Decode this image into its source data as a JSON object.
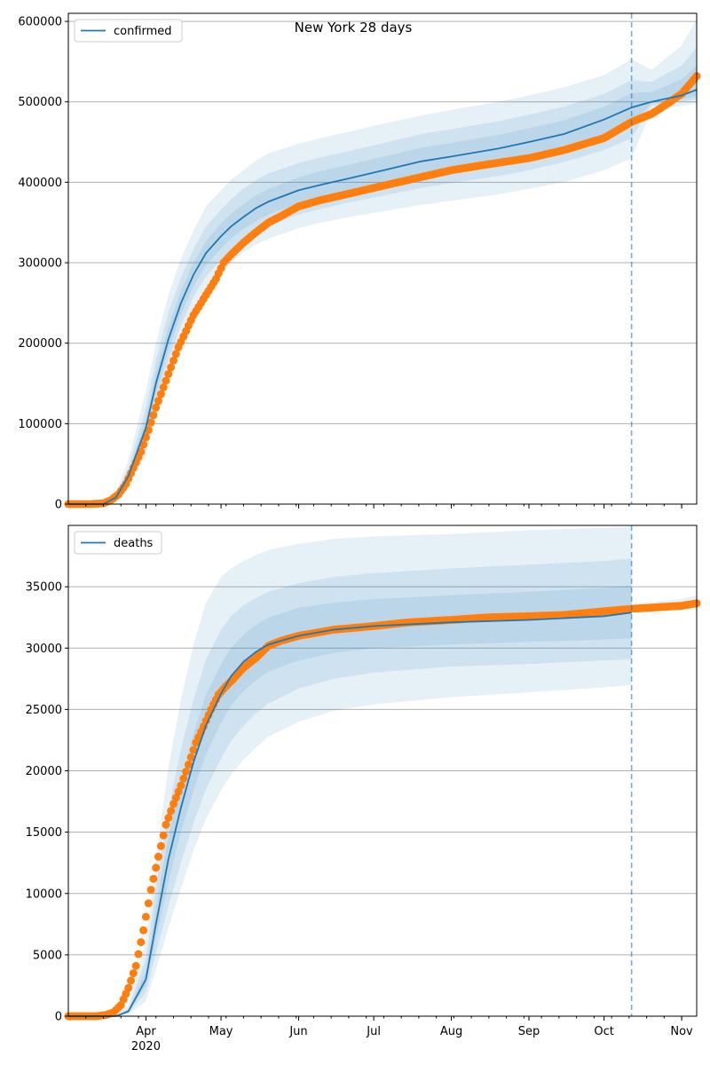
{
  "colors": {
    "model": "#1f77b4",
    "observed": "#ff7f0e",
    "band": "#1f77b4",
    "grid": "#b0b0b0",
    "axis": "#000000"
  },
  "x_axis": {
    "range": [
      "2020-03-01",
      "2020-11-07"
    ],
    "month_ticks": [
      {
        "date": "2020-04-01",
        "label": "Apr",
        "year_label": "2020"
      },
      {
        "date": "2020-05-01",
        "label": "May"
      },
      {
        "date": "2020-06-01",
        "label": "Jun"
      },
      {
        "date": "2020-07-01",
        "label": "Jul"
      },
      {
        "date": "2020-08-01",
        "label": "Aug"
      },
      {
        "date": "2020-09-01",
        "label": "Sep"
      },
      {
        "date": "2020-10-01",
        "label": "Oct"
      },
      {
        "date": "2020-11-01",
        "label": "Nov"
      }
    ],
    "minor_tick_step_days": 7,
    "forecast_line": "2020-10-12"
  },
  "chart_data": [
    {
      "type": "line",
      "title": "New York 28 days",
      "legend": {
        "label": "confirmed",
        "placement": "top-left"
      },
      "grid": true,
      "ylim": [
        0,
        610000
      ],
      "yticks": [
        0,
        100000,
        200000,
        300000,
        400000,
        500000,
        600000
      ],
      "ytick_labels": [
        "0",
        "100000",
        "200000",
        "300000",
        "400000",
        "500000",
        "600000"
      ],
      "model_curve": {
        "x": [
          "2020-03-01",
          "2020-03-15",
          "2020-03-20",
          "2020-03-25",
          "2020-04-01",
          "2020-04-05",
          "2020-04-10",
          "2020-04-15",
          "2020-04-20",
          "2020-04-25",
          "2020-05-01",
          "2020-05-05",
          "2020-05-10",
          "2020-05-15",
          "2020-05-20",
          "2020-06-01",
          "2020-06-10",
          "2020-06-20",
          "2020-07-01",
          "2020-07-20",
          "2020-08-01",
          "2020-08-20",
          "2020-09-01",
          "2020-09-15",
          "2020-10-01",
          "2020-10-12",
          "2020-10-20",
          "2020-11-01",
          "2020-11-07"
        ],
        "y": [
          0,
          0,
          8000,
          35000,
          95000,
          150000,
          205000,
          250000,
          285000,
          312000,
          333000,
          345000,
          357000,
          368000,
          376000,
          390000,
          397000,
          404000,
          412000,
          426000,
          432000,
          442000,
          450000,
          460000,
          478000,
          493000,
          500000,
          508000,
          515000
        ]
      },
      "bands": [
        {
          "label": "outer",
          "x": [
            "2020-03-01",
            "2020-03-15",
            "2020-03-20",
            "2020-03-25",
            "2020-04-01",
            "2020-04-05",
            "2020-04-10",
            "2020-04-15",
            "2020-04-20",
            "2020-04-25",
            "2020-05-01",
            "2020-05-05",
            "2020-05-10",
            "2020-05-15",
            "2020-05-20",
            "2020-06-01",
            "2020-06-10",
            "2020-06-20",
            "2020-07-01",
            "2020-07-20",
            "2020-08-01",
            "2020-08-20",
            "2020-09-01",
            "2020-09-15",
            "2020-10-01",
            "2020-10-12",
            "2020-10-20",
            "2020-11-01",
            "2020-11-07"
          ],
          "lower": [
            0,
            0,
            4000,
            22000,
            62000,
            110000,
            160000,
            205000,
            240000,
            265000,
            285000,
            300000,
            313000,
            323000,
            330000,
            343000,
            350000,
            356000,
            362000,
            372000,
            377000,
            385000,
            392000,
            400000,
            415000,
            430000,
            490000,
            495000,
            498000
          ],
          "upper": [
            0,
            0,
            14000,
            55000,
            140000,
            200000,
            260000,
            305000,
            340000,
            370000,
            390000,
            403000,
            415000,
            427000,
            436000,
            448000,
            455000,
            462000,
            470000,
            483000,
            490000,
            500000,
            508000,
            518000,
            533000,
            553000,
            540000,
            570000,
            603000
          ]
        },
        {
          "label": "middle",
          "x": [
            "2020-03-01",
            "2020-03-15",
            "2020-03-20",
            "2020-03-25",
            "2020-04-01",
            "2020-04-05",
            "2020-04-10",
            "2020-04-15",
            "2020-04-20",
            "2020-04-25",
            "2020-05-01",
            "2020-05-05",
            "2020-05-10",
            "2020-05-15",
            "2020-05-20",
            "2020-06-01",
            "2020-06-10",
            "2020-06-20",
            "2020-07-01",
            "2020-07-20",
            "2020-08-01",
            "2020-08-20",
            "2020-09-01",
            "2020-09-15",
            "2020-10-01",
            "2020-10-12",
            "2020-10-20",
            "2020-11-01",
            "2020-11-07"
          ],
          "lower": [
            0,
            0,
            6000,
            28000,
            75000,
            125000,
            178000,
            222000,
            258000,
            283000,
            303000,
            316000,
            328000,
            338000,
            346000,
            360000,
            367000,
            374000,
            381000,
            393000,
            399000,
            408000,
            415000,
            425000,
            440000,
            455000,
            495000,
            500000,
            503000
          ],
          "upper": [
            0,
            0,
            11000,
            45000,
            120000,
            180000,
            238000,
            282000,
            317000,
            345000,
            366000,
            379000,
            392000,
            403000,
            411000,
            424000,
            431000,
            438000,
            446000,
            460000,
            466000,
            476000,
            484000,
            494000,
            510000,
            527000,
            525000,
            545000,
            568000
          ]
        },
        {
          "label": "inner",
          "x": [
            "2020-03-01",
            "2020-03-15",
            "2020-03-20",
            "2020-03-25",
            "2020-04-01",
            "2020-04-05",
            "2020-04-10",
            "2020-04-15",
            "2020-04-20",
            "2020-04-25",
            "2020-05-01",
            "2020-05-05",
            "2020-05-10",
            "2020-05-15",
            "2020-05-20",
            "2020-06-01",
            "2020-06-10",
            "2020-06-20",
            "2020-07-01",
            "2020-07-20",
            "2020-08-01",
            "2020-08-20",
            "2020-09-01",
            "2020-09-15",
            "2020-10-01",
            "2020-10-12",
            "2020-10-20",
            "2020-11-01",
            "2020-11-07"
          ],
          "lower": [
            0,
            0,
            7000,
            31000,
            84000,
            137000,
            191000,
            236000,
            271000,
            297000,
            318000,
            330000,
            342000,
            352000,
            360000,
            374000,
            381000,
            388000,
            396000,
            409000,
            415000,
            424000,
            432000,
            442000,
            458000,
            473000,
            498000,
            503000,
            507000
          ],
          "upper": [
            0,
            0,
            9500,
            40000,
            107000,
            164000,
            220000,
            265000,
            300000,
            327000,
            349000,
            361000,
            373000,
            384000,
            392000,
            406000,
            414000,
            421000,
            429000,
            443000,
            449000,
            459000,
            467000,
            477000,
            494000,
            511000,
            512000,
            528000,
            545000
          ]
        }
      ],
      "observed": {
        "x": [
          "2020-03-01",
          "2020-03-10",
          "2020-03-15",
          "2020-03-18",
          "2020-03-21",
          "2020-03-24",
          "2020-03-27",
          "2020-03-30",
          "2020-04-02",
          "2020-04-05",
          "2020-04-08",
          "2020-04-11",
          "2020-04-14",
          "2020-04-17",
          "2020-04-20",
          "2020-04-23",
          "2020-04-26",
          "2020-04-29",
          "2020-05-02",
          "2020-05-05",
          "2020-05-10",
          "2020-05-15",
          "2020-05-20",
          "2020-05-25",
          "2020-06-01",
          "2020-06-10",
          "2020-06-20",
          "2020-07-01",
          "2020-07-15",
          "2020-08-01",
          "2020-08-15",
          "2020-09-01",
          "2020-09-15",
          "2020-10-01",
          "2020-10-12",
          "2020-10-20",
          "2020-10-25",
          "2020-11-01",
          "2020-11-07"
        ],
        "y": [
          0,
          0,
          1000,
          5000,
          12000,
          25000,
          45000,
          65000,
          92000,
          120000,
          145000,
          170000,
          195000,
          215000,
          235000,
          250000,
          265000,
          280000,
          300000,
          310000,
          325000,
          338000,
          350000,
          358000,
          370000,
          378000,
          385000,
          393000,
          403000,
          415000,
          422000,
          430000,
          440000,
          455000,
          475000,
          485000,
          495000,
          510000,
          532000
        ]
      }
    },
    {
      "type": "line",
      "title": "",
      "legend": {
        "label": "deaths",
        "placement": "top-left"
      },
      "grid": true,
      "ylim": [
        0,
        40000
      ],
      "yticks": [
        0,
        5000,
        10000,
        15000,
        20000,
        25000,
        30000,
        35000
      ],
      "ytick_labels": [
        "0",
        "5000",
        "10000",
        "15000",
        "20000",
        "25000",
        "30000",
        "35000"
      ],
      "model_curve": {
        "x": [
          "2020-03-01",
          "2020-03-20",
          "2020-03-25",
          "2020-04-01",
          "2020-04-05",
          "2020-04-10",
          "2020-04-15",
          "2020-04-20",
          "2020-04-25",
          "2020-05-01",
          "2020-05-05",
          "2020-05-10",
          "2020-05-15",
          "2020-05-20",
          "2020-06-01",
          "2020-06-15",
          "2020-07-01",
          "2020-08-01",
          "2020-09-01",
          "2020-10-01",
          "2020-10-12"
        ],
        "y": [
          0,
          0,
          400,
          3000,
          7500,
          12800,
          17000,
          20700,
          23700,
          26300,
          27700,
          28900,
          29700,
          30300,
          31000,
          31500,
          31800,
          32100,
          32300,
          32600,
          32900
        ]
      },
      "bands": [
        {
          "label": "outer",
          "x": [
            "2020-03-01",
            "2020-03-20",
            "2020-03-25",
            "2020-04-01",
            "2020-04-05",
            "2020-04-10",
            "2020-04-15",
            "2020-04-20",
            "2020-04-25",
            "2020-05-01",
            "2020-05-05",
            "2020-05-10",
            "2020-05-15",
            "2020-05-20",
            "2020-06-01",
            "2020-06-15",
            "2020-07-01",
            "2020-08-01",
            "2020-09-01",
            "2020-10-01",
            "2020-10-12"
          ],
          "lower": [
            0,
            0,
            150,
            1200,
            3800,
            7200,
            10400,
            13500,
            16100,
            18400,
            19700,
            20900,
            21900,
            22800,
            24000,
            24900,
            25400,
            26000,
            26400,
            26800,
            27000
          ],
          "upper": [
            0,
            0,
            900,
            6200,
            12800,
            20300,
            25800,
            30300,
            33700,
            35800,
            36500,
            37100,
            37600,
            38000,
            38500,
            38900,
            39100,
            39300,
            39600,
            39800,
            39900
          ]
        },
        {
          "label": "middle",
          "x": [
            "2020-03-01",
            "2020-03-20",
            "2020-03-25",
            "2020-04-01",
            "2020-04-05",
            "2020-04-10",
            "2020-04-15",
            "2020-04-20",
            "2020-04-25",
            "2020-05-01",
            "2020-05-05",
            "2020-05-10",
            "2020-05-15",
            "2020-05-20",
            "2020-06-01",
            "2020-06-15",
            "2020-07-01",
            "2020-08-01",
            "2020-09-01",
            "2020-10-01",
            "2020-10-12"
          ],
          "lower": [
            0,
            0,
            250,
            1900,
            5100,
            9000,
            12500,
            15700,
            18500,
            21000,
            22400,
            23700,
            24700,
            25500,
            26700,
            27500,
            28000,
            28500,
            28700,
            29000,
            29100
          ],
          "upper": [
            0,
            0,
            650,
            4700,
            10500,
            16800,
            21800,
            25800,
            29100,
            31500,
            32600,
            33500,
            34100,
            34600,
            35300,
            35800,
            36100,
            36500,
            36800,
            37100,
            37300
          ]
        },
        {
          "label": "inner",
          "x": [
            "2020-03-01",
            "2020-03-20",
            "2020-03-25",
            "2020-04-01",
            "2020-04-05",
            "2020-04-10",
            "2020-04-15",
            "2020-04-20",
            "2020-04-25",
            "2020-05-01",
            "2020-05-05",
            "2020-05-10",
            "2020-05-15",
            "2020-05-20",
            "2020-06-01",
            "2020-06-15",
            "2020-07-01",
            "2020-08-01",
            "2020-09-01",
            "2020-10-01",
            "2020-10-12"
          ],
          "lower": [
            0,
            0,
            330,
            2500,
            6300,
            11000,
            15000,
            18400,
            21300,
            23900,
            25300,
            26500,
            27400,
            28100,
            29000,
            29600,
            30000,
            30300,
            30500,
            30700,
            30800
          ],
          "upper": [
            0,
            0,
            520,
            3700,
            8800,
            14700,
            19200,
            23000,
            26200,
            28700,
            30000,
            31100,
            31900,
            32500,
            33300,
            33700,
            34000,
            34300,
            34600,
            34900,
            35100
          ]
        },
        {
          "label": "forecast-tail",
          "x": [
            "2020-10-12",
            "2020-10-20",
            "2020-11-01",
            "2020-11-07"
          ],
          "lower": [
            33000,
            33150,
            33400,
            33550
          ],
          "upper": [
            33600,
            33750,
            34000,
            34300
          ]
        }
      ],
      "observed": {
        "x": [
          "2020-03-01",
          "2020-03-12",
          "2020-03-16",
          "2020-03-19",
          "2020-03-22",
          "2020-03-25",
          "2020-03-28",
          "2020-03-31",
          "2020-04-03",
          "2020-04-06",
          "2020-04-09",
          "2020-04-12",
          "2020-04-15",
          "2020-04-18",
          "2020-04-21",
          "2020-04-24",
          "2020-04-27",
          "2020-04-30",
          "2020-05-03",
          "2020-05-06",
          "2020-05-10",
          "2020-05-15",
          "2020-05-20",
          "2020-05-25",
          "2020-06-01",
          "2020-06-15",
          "2020-07-01",
          "2020-07-15",
          "2020-08-01",
          "2020-08-15",
          "2020-09-01",
          "2020-09-15",
          "2020-10-01",
          "2020-10-12",
          "2020-10-20",
          "2020-11-01",
          "2020-11-07"
        ],
        "y": [
          0,
          0,
          100,
          300,
          900,
          2300,
          4100,
          7000,
          10300,
          13000,
          15600,
          17300,
          18800,
          20500,
          22300,
          23600,
          25000,
          26200,
          26900,
          27500,
          28400,
          29200,
          30200,
          30600,
          31000,
          31500,
          31800,
          32100,
          32300,
          32500,
          32600,
          32700,
          33000,
          33200,
          33300,
          33450,
          33650
        ]
      }
    }
  ]
}
